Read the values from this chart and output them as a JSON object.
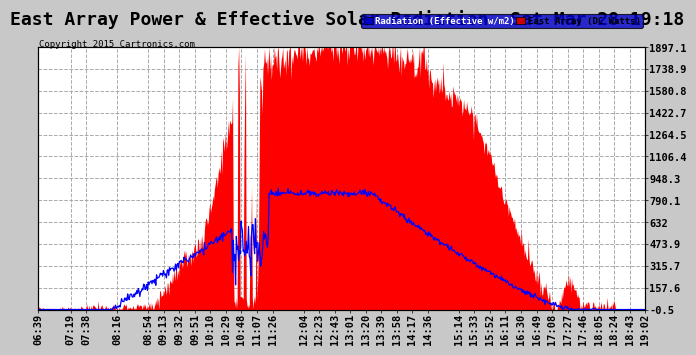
{
  "title": "East Array Power & Effective Solar Radiation  Sat Mar 28 19:18",
  "copyright": "Copyright 2015 Cartronics.com",
  "legend_radiation": "Radiation (Effective w/m2)",
  "legend_array": "East Array (DC Watts)",
  "legend_radiation_color": "#0000cc",
  "legend_array_color": "#cc0000",
  "y_ticks": [
    -0.5,
    157.6,
    315.7,
    473.9,
    632.0,
    790.1,
    948.3,
    1106.4,
    1264.5,
    1422.7,
    1580.8,
    1738.9,
    1897.1
  ],
  "y_min": -0.5,
  "y_max": 1897.1,
  "background_color": "#c8c8c8",
  "plot_bg_color": "#ffffff",
  "grid_color": "#aaaaaa",
  "fill_color_red": "#ff0000",
  "line_color_blue": "#0000ff",
  "title_fontsize": 13,
  "tick_fontsize": 7.5,
  "x_labels": [
    "06:39",
    "07:19",
    "07:38",
    "08:16",
    "08:54",
    "09:13",
    "09:32",
    "09:51",
    "10:10",
    "10:29",
    "10:48",
    "11:07",
    "11:26",
    "12:04",
    "12:23",
    "12:43",
    "13:01",
    "13:20",
    "13:39",
    "13:58",
    "14:17",
    "14:36",
    "15:14",
    "15:33",
    "15:52",
    "16:11",
    "16:30",
    "16:49",
    "17:08",
    "17:27",
    "17:46",
    "18:05",
    "18:24",
    "18:43",
    "19:02"
  ]
}
